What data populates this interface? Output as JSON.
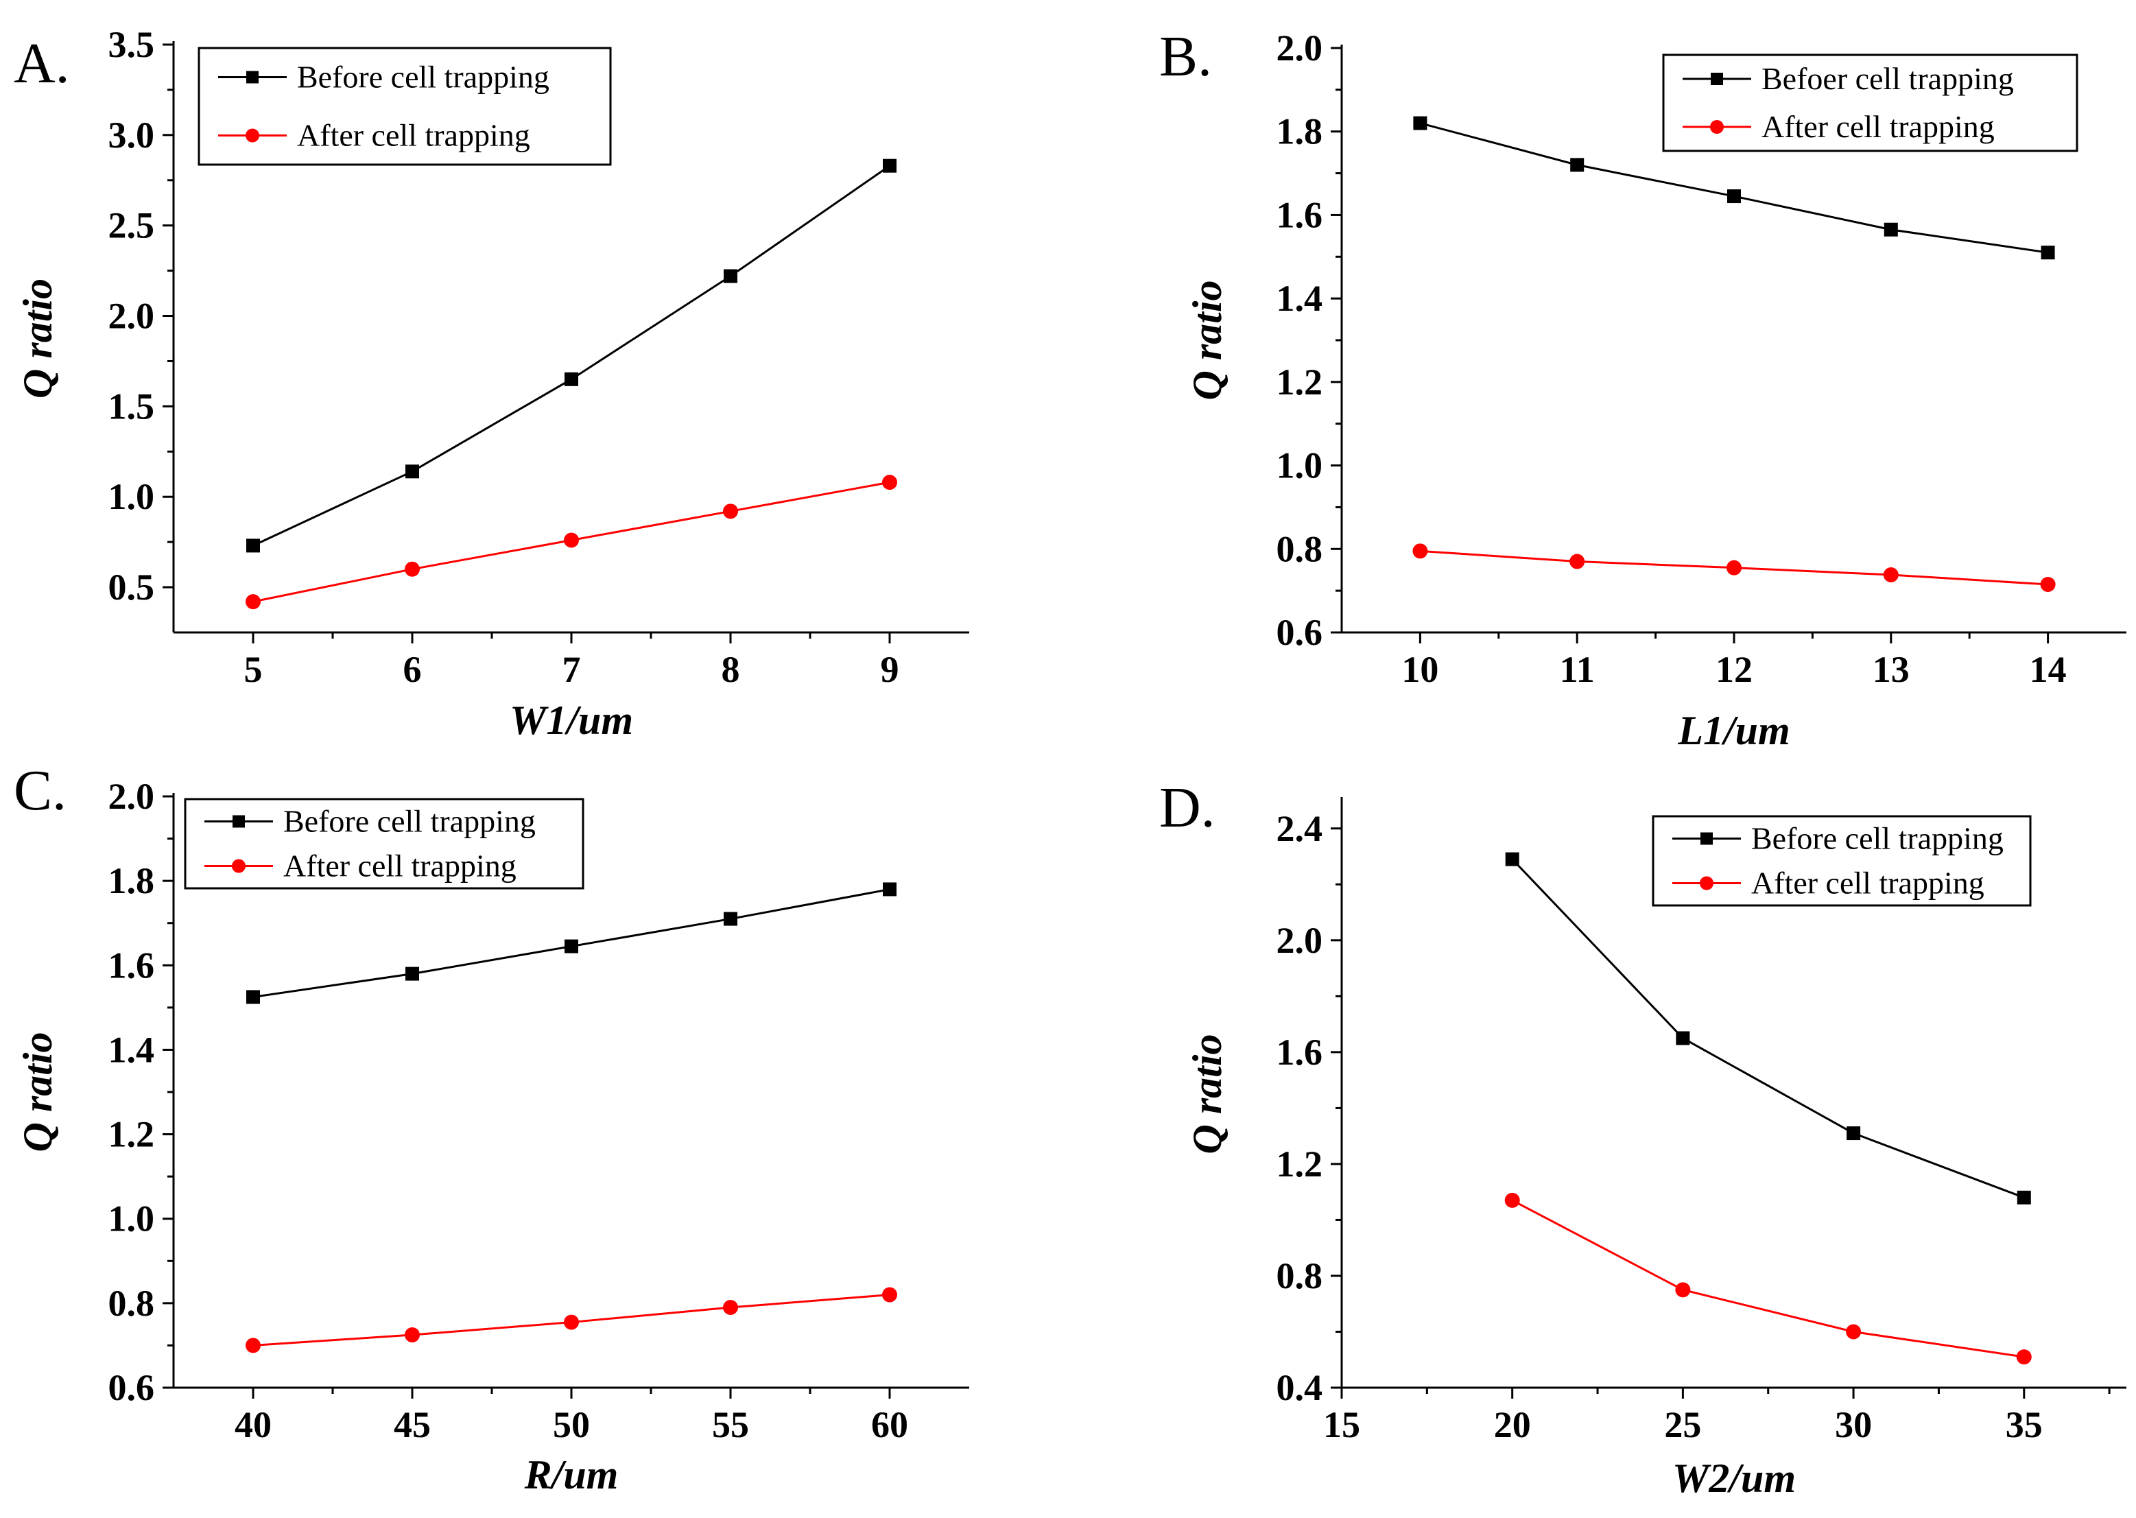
{
  "chart_data": [
    {
      "type": "line",
      "panel_label": "A.",
      "xlabel": "W1/um",
      "ylabel": "Q ratio",
      "x": [
        5,
        6,
        7,
        8,
        9
      ],
      "xlim": [
        4.5,
        9.5
      ],
      "ylim": [
        0.25,
        3.5
      ],
      "xticks": [
        "5",
        "6",
        "7",
        "8",
        "9"
      ],
      "yticks": [
        "0.5",
        "1.0",
        "1.5",
        "2.0",
        "2.5",
        "3.0",
        "3.5"
      ],
      "legend_position": "top-left",
      "series": [
        {
          "name": "Before cell trapping",
          "color": "#000000",
          "marker": "square",
          "values": [
            0.73,
            1.14,
            1.65,
            2.22,
            2.83
          ]
        },
        {
          "name": "After cell trapping",
          "color": "#ff0000",
          "marker": "circle",
          "values": [
            0.42,
            0.6,
            0.76,
            0.92,
            1.08
          ]
        }
      ]
    },
    {
      "type": "line",
      "panel_label": "B.",
      "xlabel": "L1/um",
      "ylabel": "Q ratio",
      "x": [
        10,
        11,
        12,
        13,
        14
      ],
      "xlim": [
        9.5,
        14.5
      ],
      "ylim": [
        0.6,
        2.0
      ],
      "xticks": [
        "10",
        "11",
        "12",
        "13",
        "14"
      ],
      "yticks": [
        "0.6",
        "0.8",
        "1.0",
        "1.2",
        "1.4",
        "1.6",
        "1.8",
        "2.0"
      ],
      "legend_position": "top-right",
      "series": [
        {
          "name": "Befoer cell trapping",
          "color": "#000000",
          "marker": "square",
          "values": [
            1.82,
            1.72,
            1.645,
            1.565,
            1.51
          ]
        },
        {
          "name": "After cell trapping",
          "color": "#ff0000",
          "marker": "circle",
          "values": [
            0.795,
            0.77,
            0.755,
            0.738,
            0.715
          ]
        }
      ]
    },
    {
      "type": "line",
      "panel_label": "C.",
      "xlabel": "R/um",
      "ylabel": "Q ratio",
      "x": [
        40,
        45,
        50,
        55,
        60
      ],
      "xlim": [
        37.5,
        62.5
      ],
      "ylim": [
        0.6,
        2.0
      ],
      "xticks": [
        "40",
        "45",
        "50",
        "55",
        "60"
      ],
      "yticks": [
        "0.6",
        "0.8",
        "1.0",
        "1.2",
        "1.4",
        "1.6",
        "1.8",
        "2.0"
      ],
      "legend_position": "top-left",
      "series": [
        {
          "name": "Before cell trapping",
          "color": "#000000",
          "marker": "square",
          "values": [
            1.525,
            1.58,
            1.645,
            1.71,
            1.78
          ]
        },
        {
          "name": "After cell trapping",
          "color": "#ff0000",
          "marker": "circle",
          "values": [
            0.7,
            0.725,
            0.755,
            0.79,
            0.82
          ]
        }
      ]
    },
    {
      "type": "line",
      "panel_label": "D.",
      "xlabel": "W2/um",
      "ylabel": "Q ratio",
      "x": [
        20,
        25,
        30,
        35
      ],
      "xlim": [
        15,
        38
      ],
      "ylim": [
        0.4,
        2.5
      ],
      "xticks": [
        "15",
        "20",
        "25",
        "30",
        "35"
      ],
      "xtick_values": [
        15,
        20,
        25,
        30,
        35
      ],
      "yticks": [
        "0.4",
        "0.8",
        "1.2",
        "1.6",
        "2.0",
        "2.4"
      ],
      "legend_position": "top-right",
      "series": [
        {
          "name": "Before cell trapping",
          "color": "#000000",
          "marker": "square",
          "values": [
            2.29,
            1.65,
            1.31,
            1.08
          ]
        },
        {
          "name": "After cell trapping",
          "color": "#ff0000",
          "marker": "circle",
          "values": [
            1.07,
            0.75,
            0.6,
            0.51
          ]
        }
      ]
    }
  ]
}
